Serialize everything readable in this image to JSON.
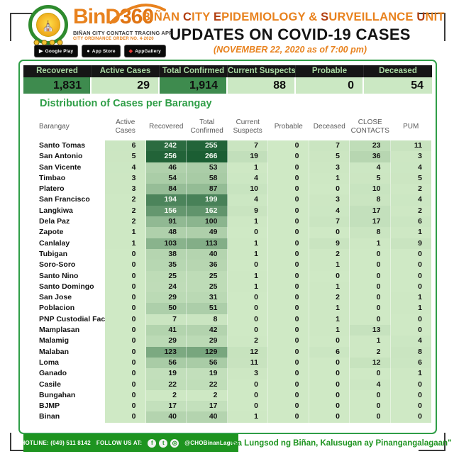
{
  "header": {
    "logo": {
      "brand_prefix": "BinD",
      "brand_suffix": "360",
      "tagline": "BIÑAN CITY CONTACT TRACING APP",
      "ordinance": "CITY ORDINANCE ORDER NO. 4-2020",
      "store_badges": [
        {
          "label": "Google Play",
          "glyph": "▶"
        },
        {
          "label": "App Store",
          "glyph": "●"
        },
        {
          "label": "AppGallery",
          "glyph": "◆"
        }
      ]
    },
    "title_segments": [
      {
        "text": "BIÑAN ",
        "dark": false
      },
      {
        "text": "C",
        "dark": true
      },
      {
        "text": "ITY ",
        "dark": false
      },
      {
        "text": "E",
        "dark": true
      },
      {
        "text": "PIDEMIOLOGY & ",
        "dark": false
      },
      {
        "text": "S",
        "dark": true
      },
      {
        "text": "URVEILLANCE ",
        "dark": false
      },
      {
        "text": "U",
        "dark": true
      },
      {
        "text": "NIT",
        "dark": false
      }
    ],
    "headline": "UPDATES ON COVID-19 CASES",
    "date_line": "(NOVEMBER 22, 2020 as of  7:00 pm)"
  },
  "summary": {
    "columns": [
      {
        "label": "Recovered",
        "value": "1,831",
        "highlight": true
      },
      {
        "label": "Active Cases",
        "value": "29",
        "highlight": false
      },
      {
        "label": "Total Confirmed",
        "value": "1,914",
        "highlight": true
      },
      {
        "label": "Current Suspects",
        "value": "88",
        "highlight": false
      },
      {
        "label": "Probable",
        "value": "0",
        "highlight": false
      },
      {
        "label": "Deceased",
        "value": "54",
        "highlight": false
      }
    ]
  },
  "table": {
    "section_title": "Distribution of Cases per Barangay",
    "header_lines": [
      [
        "Barangay"
      ],
      [
        "Active",
        "Cases"
      ],
      [
        "Recovered"
      ],
      [
        "Total",
        "Confirmed"
      ],
      [
        "Current",
        "Suspects"
      ],
      [
        "Probable"
      ],
      [
        "Deceased"
      ],
      [
        "CLOSE",
        "CONTACTS"
      ],
      [
        "PUM"
      ]
    ]
  },
  "chart_data": {
    "type": "table",
    "title": "Distribution of Cases per Barangay",
    "columns": [
      "Barangay",
      "Active Cases",
      "Recovered",
      "Total Confirmed",
      "Current Suspects",
      "Probable",
      "Deceased",
      "CLOSE CONTACTS",
      "PUM"
    ],
    "rows": [
      [
        "Santo Tomas",
        6,
        242,
        255,
        7,
        0,
        7,
        23,
        11
      ],
      [
        "San Antonio",
        5,
        256,
        266,
        19,
        0,
        5,
        36,
        3
      ],
      [
        "San Vicente",
        4,
        46,
        53,
        1,
        0,
        3,
        4,
        4
      ],
      [
        "Timbao",
        3,
        54,
        58,
        4,
        0,
        1,
        5,
        5
      ],
      [
        "Platero",
        3,
        84,
        87,
        10,
        0,
        0,
        10,
        2
      ],
      [
        "San Francisco",
        2,
        194,
        199,
        4,
        0,
        3,
        8,
        4
      ],
      [
        "Langkiwa",
        2,
        156,
        162,
        9,
        0,
        4,
        17,
        2
      ],
      [
        "Dela Paz",
        2,
        91,
        100,
        1,
        0,
        7,
        17,
        6
      ],
      [
        "Zapote",
        1,
        48,
        49,
        0,
        0,
        0,
        8,
        1
      ],
      [
        "Canlalay",
        1,
        103,
        113,
        1,
        0,
        9,
        1,
        9
      ],
      [
        "Tubigan",
        0,
        38,
        40,
        1,
        0,
        2,
        0,
        0
      ],
      [
        "Soro-Soro",
        0,
        35,
        36,
        0,
        0,
        1,
        0,
        0
      ],
      [
        "Santo Nino",
        0,
        25,
        25,
        1,
        0,
        0,
        0,
        0
      ],
      [
        "Santo Domingo",
        0,
        24,
        25,
        1,
        0,
        1,
        0,
        0
      ],
      [
        "San Jose",
        0,
        29,
        31,
        0,
        0,
        2,
        0,
        1
      ],
      [
        "Poblacion",
        0,
        50,
        51,
        0,
        0,
        1,
        0,
        1
      ],
      [
        "PNP Custodial Fac..",
        0,
        7,
        8,
        0,
        0,
        1,
        0,
        0
      ],
      [
        "Mamplasan",
        0,
        41,
        42,
        0,
        0,
        1,
        13,
        0
      ],
      [
        "Malamig",
        0,
        29,
        29,
        2,
        0,
        0,
        1,
        4
      ],
      [
        "Malaban",
        0,
        123,
        129,
        12,
        0,
        6,
        2,
        8
      ],
      [
        "Loma",
        0,
        56,
        56,
        11,
        0,
        0,
        12,
        6
      ],
      [
        "Ganado",
        0,
        19,
        19,
        3,
        0,
        0,
        0,
        1
      ],
      [
        "Casile",
        0,
        22,
        22,
        0,
        0,
        0,
        4,
        0
      ],
      [
        "Bungahan",
        0,
        2,
        2,
        0,
        0,
        0,
        0,
        0
      ],
      [
        "BJMP",
        0,
        17,
        17,
        0,
        0,
        0,
        0,
        0
      ],
      [
        "Binan",
        0,
        40,
        40,
        1,
        0,
        0,
        0,
        0
      ]
    ],
    "heatmap": {
      "normalization_max": 266,
      "light_color": "#cfe9c5",
      "dark_color": "#1b5e33",
      "white_text_threshold": 0.55
    }
  },
  "footer": {
    "hotline": "HOTLINE: (049) 511 8142",
    "follow_label": "FOLLOW US AT:",
    "social": [
      {
        "name": "facebook",
        "glyph": "f"
      },
      {
        "name": "twitter",
        "glyph": "t"
      },
      {
        "name": "instagram",
        "glyph": "◎"
      }
    ],
    "handle": "@CHOBinanLaguna",
    "quote": "\"Sa Lungsod ng Biñan, Kalusugan ay Pinangangalagaan\""
  },
  "colors": {
    "orange": "#e8821e",
    "green": "#2f9e47",
    "footer_green": "#1e9420",
    "summary_dark_cell": "#3e8b4e",
    "summary_light_cell": "#cbe8c3",
    "summary_header_bg": "#161616",
    "summary_header_text": "#a9d9a2"
  }
}
